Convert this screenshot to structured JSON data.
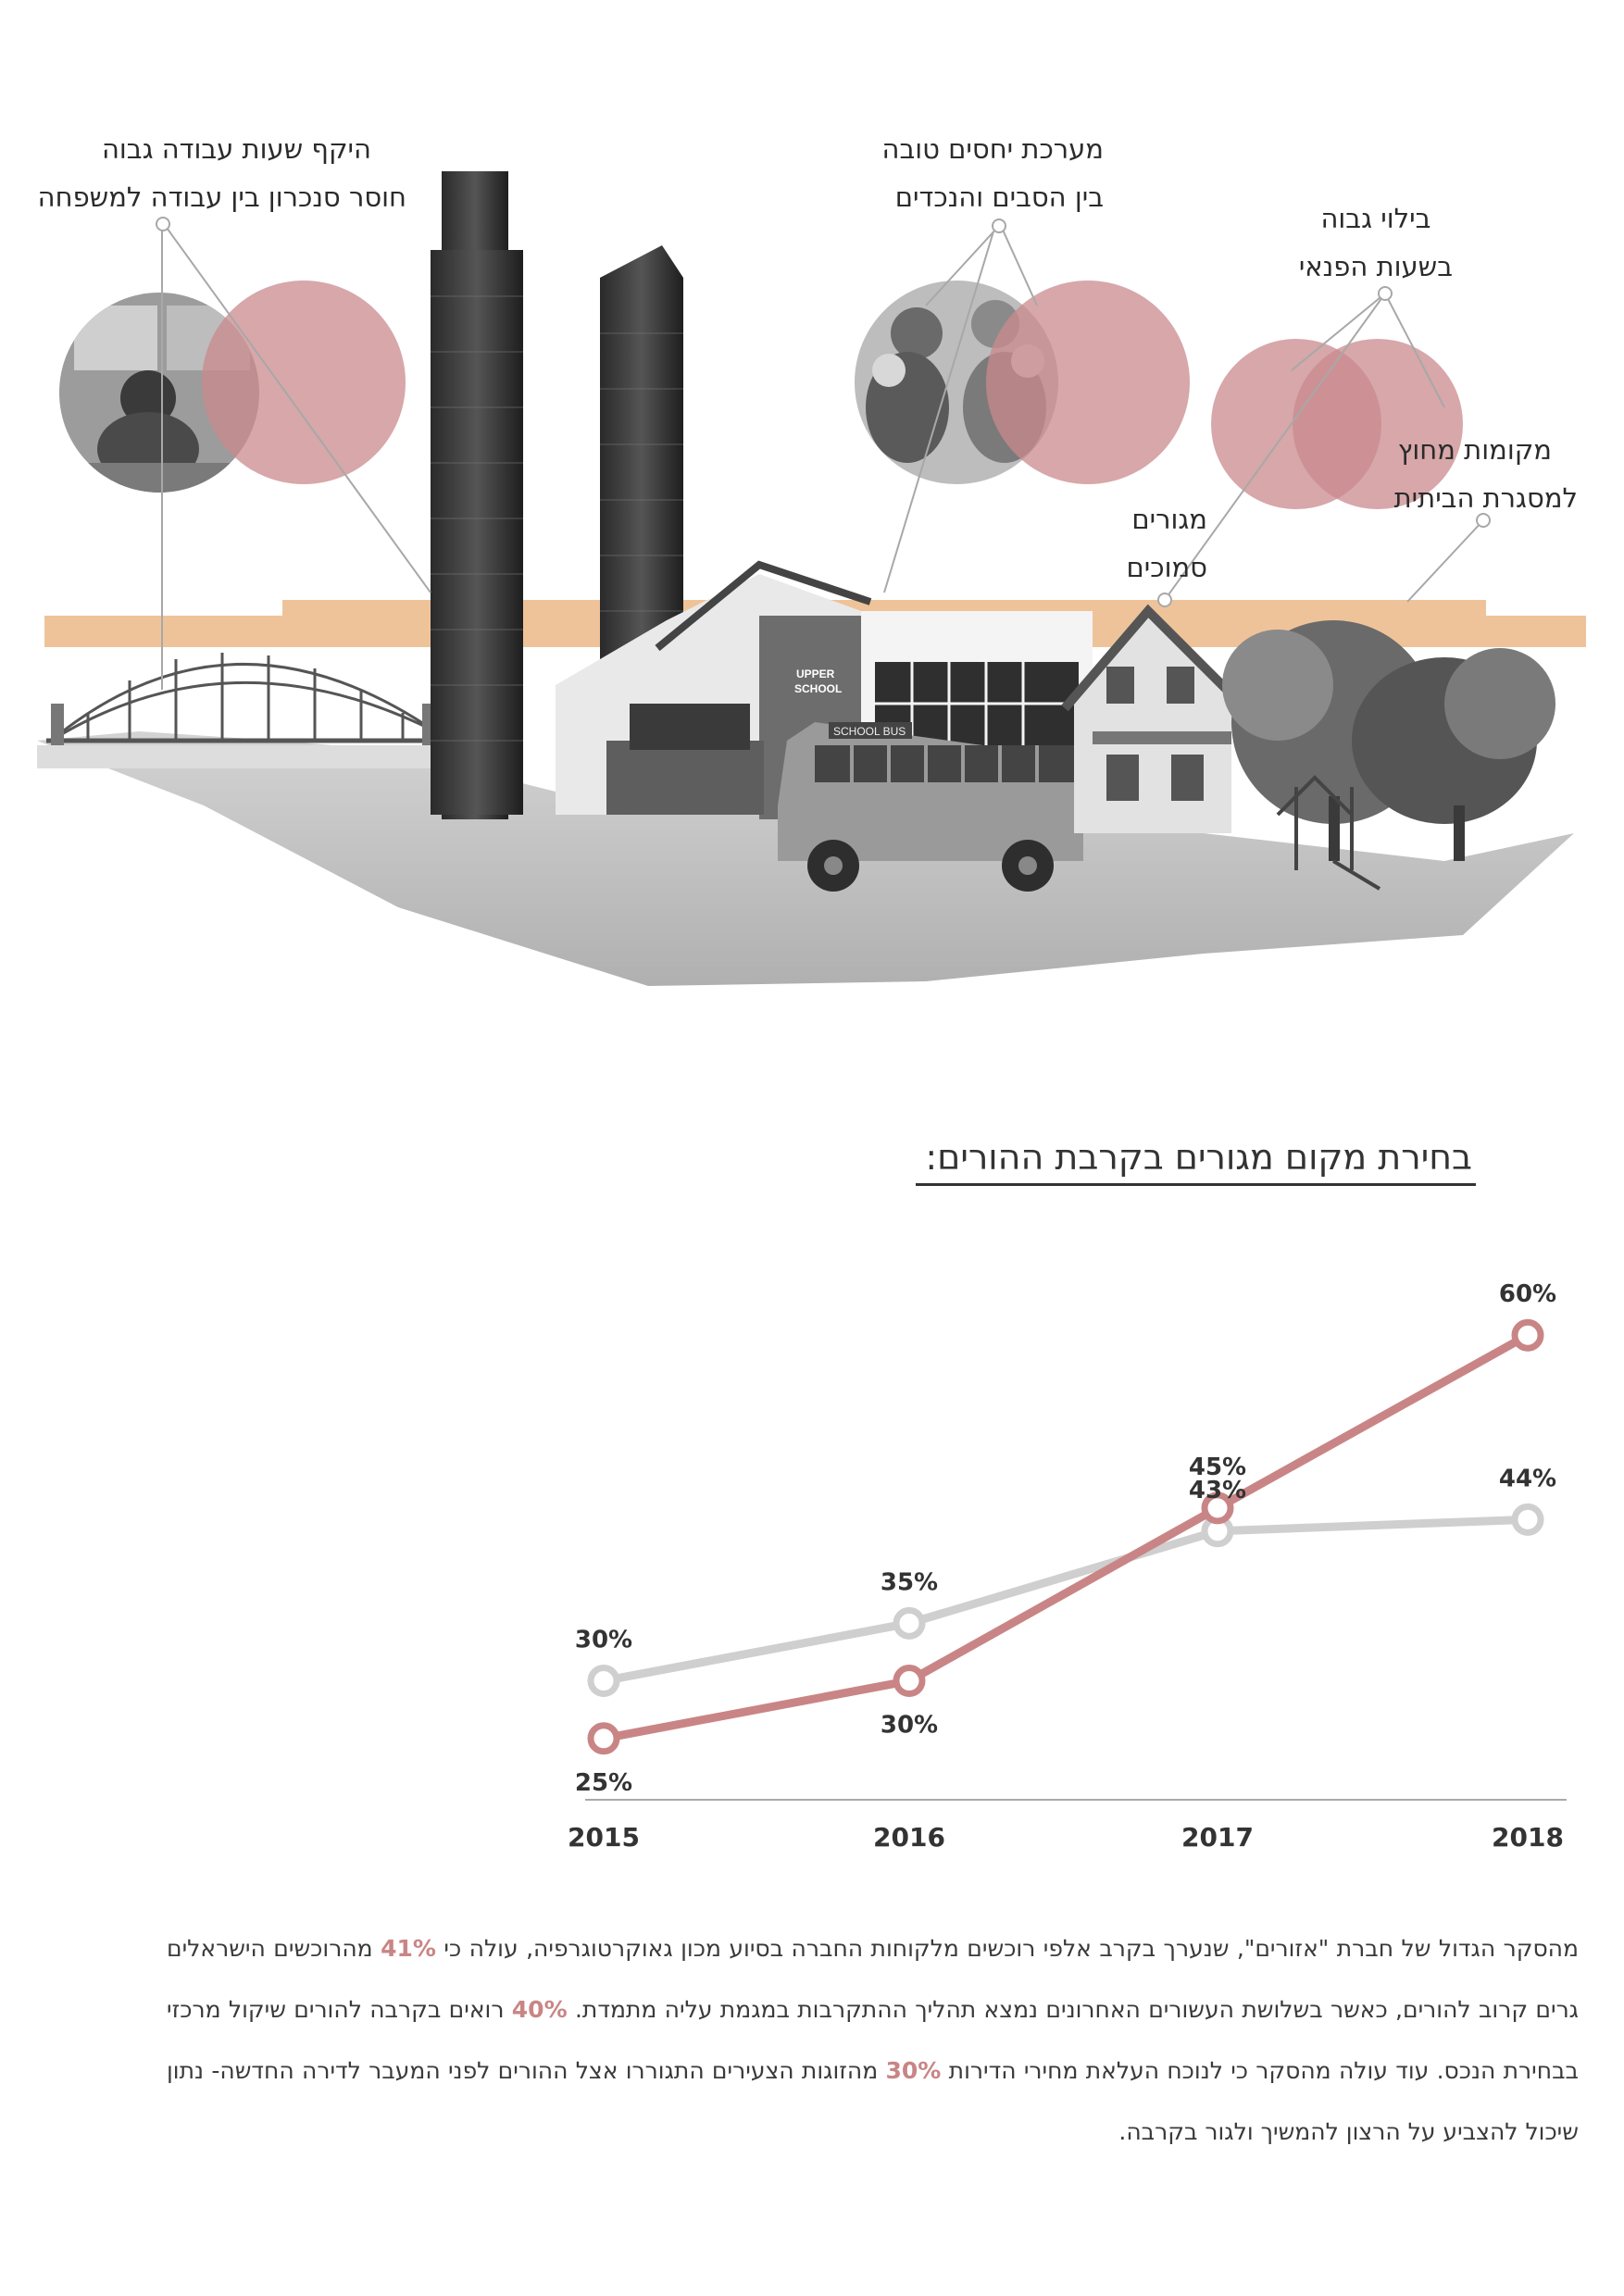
{
  "illustration": {
    "labels": {
      "work_hours": [
        "היקף שעות עבודה גבוה",
        "חוסר סנכרון בין עבודה למשפחה"
      ],
      "family_relations": [
        "מערכת יחסים טובה",
        "בין הסבים והנכדים"
      ],
      "leisure": [
        "בילוי גבוה",
        "בשעות הפנאי"
      ],
      "outside_home": [
        "מקומות מחוץ",
        "למסגרת הביתית"
      ],
      "nearby_living": [
        "מגורים",
        "סמוכים"
      ]
    },
    "school_sign": [
      "UPPER",
      "SCHOOL"
    ],
    "bus_sign": "SCHOOL BUS",
    "colors": {
      "accent_circle": "#c98a8d",
      "band": "#efc39a",
      "ground": "#bdbdbd"
    }
  },
  "chart_title": "בחירת מקום מגורים בקרבת ההורים:",
  "chart_data": {
    "type": "line",
    "x": [
      "2015",
      "2016",
      "2017",
      "2018"
    ],
    "series": [
      {
        "values": [
          25,
          30,
          45,
          60
        ],
        "labels": [
          "25%",
          "30%",
          "45%",
          "60%"
        ],
        "color": "#c98585"
      },
      {
        "values": [
          30,
          35,
          43,
          44
        ],
        "labels": [
          "30%",
          "35%",
          "43%",
          "44%"
        ],
        "color": "#cfcfcf"
      }
    ],
    "ylim": [
      20,
      65
    ],
    "grid": false,
    "legend": "none"
  },
  "body_text": {
    "parts": [
      "מהסקר הגדול של חברת \"אזורים\", שנערך בקרב אלפי רוכשים מלקוחות החברה בסיוע מכון גאוקרטוגרפיה, עולה כי ",
      "41%",
      " מהרוכשים הישראלים גרים קרוב להורים, כאשר בשלושת העשורים האחרונים נמצא תהליך ההתקרבות במגמת עליה מתמדת. ",
      "40%",
      " רואים בקרבה להורים שיקול מרכזי בבחירת הנכס. עוד עולה מהסקר כי לנוכח העלאת מחירי הדירות ",
      "30%",
      " מהזוגות הצעירים התגוררו אצל ההורים לפני המעבר לדירה החדשה- נתון שיכול להצביע על הרצון להמשיך ולגור בקרבה."
    ]
  }
}
